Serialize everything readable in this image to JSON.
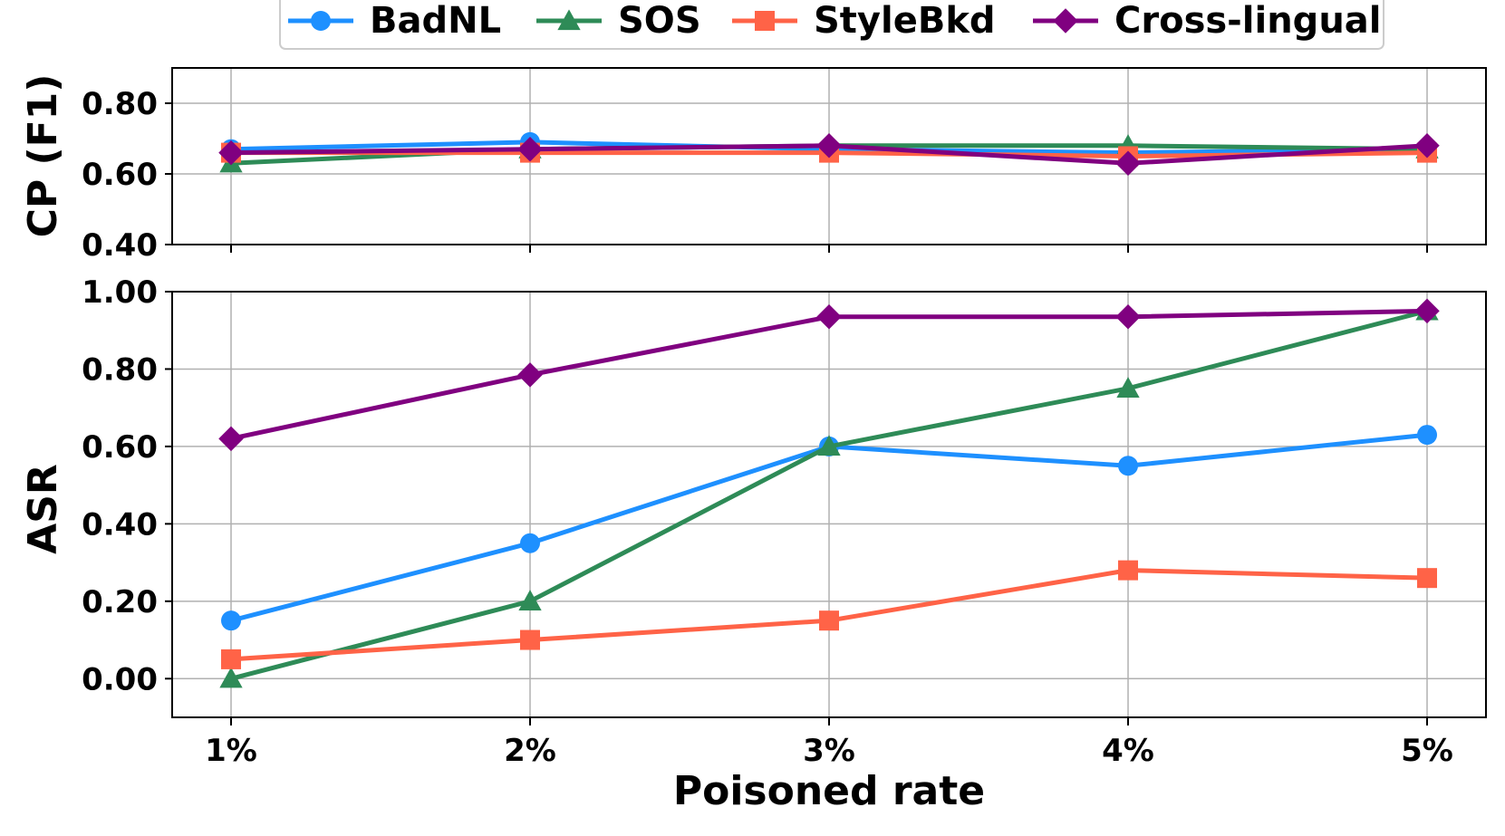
{
  "chart_data": [
    {
      "type": "line",
      "panel": "top",
      "ylabel": "CP (F1)",
      "xlabel": "",
      "categories": [
        "1%",
        "2%",
        "3%",
        "4%",
        "5%"
      ],
      "ylim": [
        0.4,
        0.9
      ],
      "yticks": [
        0.4,
        0.6,
        0.8
      ],
      "ytick_labels": [
        "0.40",
        "0.60",
        "0.80"
      ],
      "grid": true,
      "series": [
        {
          "name": "BadNL",
          "color": "#1e90ff",
          "marker": "circle",
          "values": [
            0.67,
            0.69,
            0.67,
            0.66,
            0.67
          ]
        },
        {
          "name": "SOS",
          "color": "#2e8b57",
          "marker": "triangle",
          "values": [
            0.63,
            0.67,
            0.68,
            0.68,
            0.67
          ]
        },
        {
          "name": "StyleBkd",
          "color": "#ff6347",
          "marker": "square",
          "values": [
            0.66,
            0.66,
            0.66,
            0.65,
            0.66
          ]
        },
        {
          "name": "Cross-lingual",
          "color": "#800080",
          "marker": "diamond",
          "values": [
            0.66,
            0.67,
            0.68,
            0.63,
            0.68
          ]
        }
      ]
    },
    {
      "type": "line",
      "panel": "bottom",
      "ylabel": "ASR",
      "xlabel": "Poisoned rate",
      "categories": [
        "1%",
        "2%",
        "3%",
        "4%",
        "5%"
      ],
      "ylim": [
        -0.1,
        1.0
      ],
      "yticks": [
        0.0,
        0.2,
        0.4,
        0.6,
        0.8,
        1.0
      ],
      "ytick_labels": [
        "0.00",
        "0.20",
        "0.40",
        "0.60",
        "0.80",
        "1.00"
      ],
      "grid": true,
      "series": [
        {
          "name": "BadNL",
          "color": "#1e90ff",
          "marker": "circle",
          "values": [
            0.15,
            0.35,
            0.6,
            0.55,
            0.63
          ]
        },
        {
          "name": "SOS",
          "color": "#2e8b57",
          "marker": "triangle",
          "values": [
            0.0,
            0.2,
            0.6,
            0.75,
            0.95
          ]
        },
        {
          "name": "StyleBkd",
          "color": "#ff6347",
          "marker": "square",
          "values": [
            0.05,
            0.1,
            0.15,
            0.28,
            0.26
          ]
        },
        {
          "name": "Cross-lingual",
          "color": "#800080",
          "marker": "diamond",
          "values": [
            0.62,
            0.785,
            0.935,
            0.935,
            0.95
          ]
        }
      ]
    }
  ],
  "legend": {
    "placement": "top-center",
    "entries": [
      "BadNL",
      "SOS",
      "StyleBkd",
      "Cross-lingual"
    ]
  }
}
